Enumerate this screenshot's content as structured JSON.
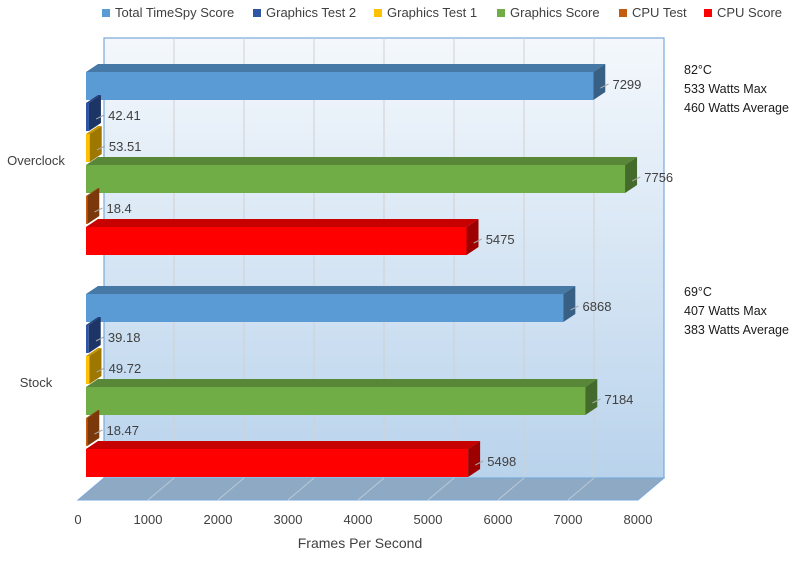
{
  "chart_data": {
    "type": "bar",
    "orientation": "horizontal",
    "style": "3d",
    "categories": [
      "Overclock",
      "Stock"
    ],
    "series": [
      {
        "name": "Total TimeSpy Score",
        "color": "#5b9bd5",
        "values": [
          7299,
          6868
        ],
        "labels": [
          "7299",
          "6868"
        ]
      },
      {
        "name": "Graphics Test 2",
        "color": "#2f55a4",
        "values": [
          42.41,
          39.18
        ],
        "labels": [
          "42.41",
          "39.18"
        ]
      },
      {
        "name": "Graphics Test 1",
        "color": "#ffc000",
        "values": [
          53.51,
          49.72
        ],
        "labels": [
          "53.51",
          "49.72"
        ]
      },
      {
        "name": "Graphics Score",
        "color": "#70ad47",
        "values": [
          7756,
          7184
        ],
        "labels": [
          "7756",
          "7184"
        ]
      },
      {
        "name": "CPU Test",
        "color": "#c55a11",
        "values": [
          18.4,
          18.47
        ],
        "labels": [
          "18.4",
          "18.47"
        ]
      },
      {
        "name": "CPU Score",
        "color": "#ff0000",
        "values": [
          5475,
          5498
        ],
        "labels": [
          "5475",
          "5498"
        ]
      }
    ],
    "legend_order": [
      "Total TimeSpy Score",
      "Graphics Test 2",
      "Graphics Test 1",
      "Graphics Score",
      "CPU Test",
      "CPU Score"
    ],
    "legend_position": "top",
    "xlabel": "Frames Per Second",
    "xlim": [
      0,
      8000
    ],
    "xticks": [
      "0",
      "1000",
      "2000",
      "3000",
      "4000",
      "5000",
      "6000",
      "7000",
      "8000"
    ],
    "grid": true,
    "annotations": [
      {
        "category": "Overclock",
        "lines": [
          "82°C",
          "533 Watts Max",
          "460 Watts Average"
        ]
      },
      {
        "category": "Stock",
        "lines": [
          "69°C",
          "407 Watts Max",
          "383 Watts Average"
        ]
      }
    ]
  }
}
